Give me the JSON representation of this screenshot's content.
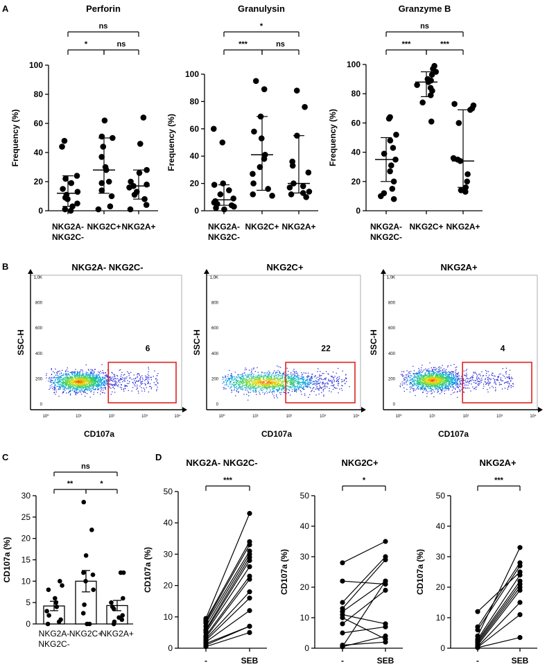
{
  "panels": {
    "A": {
      "label": "A",
      "y_axis_label": "Frequency (%)",
      "ylim": [
        0,
        100
      ],
      "yticks": [
        0,
        20,
        40,
        60,
        80,
        100
      ],
      "category_labels": [
        "NKG2A-\nNKG2C-",
        "NKG2C+",
        "NKG2A+"
      ]
    },
    "B": {
      "label": "B",
      "y_axis_label": "SSC-H",
      "x_axis_label": "CD107a",
      "yticks": [
        "0",
        "200",
        "400",
        "600",
        "800",
        "1,0K"
      ],
      "xticks": [
        "10⁰",
        "10¹",
        "10²",
        "10³",
        "10⁴"
      ],
      "gate_color": "#e02020"
    },
    "C": {
      "label": "C",
      "y_axis_label": "CD107a (%)",
      "ylim": [
        0,
        30
      ],
      "yticks": [
        0,
        5,
        10,
        15,
        20,
        25,
        30
      ],
      "category_labels": [
        "NKG2A-\nNKG2C-",
        "NKG2C+",
        "NKG2A+"
      ]
    },
    "D": {
      "label": "D",
      "y_axis_label": "CD107a (%)",
      "ylim": [
        0,
        50
      ],
      "yticks": [
        0,
        10,
        20,
        30,
        40,
        50
      ],
      "conditions": [
        "-",
        "SEB"
      ]
    }
  },
  "chart_data": [
    {
      "panel": "A",
      "type": "scatter",
      "title": "Perforin",
      "xlabel": "",
      "ylabel": "Frequency (%)",
      "ylim": [
        0,
        100
      ],
      "categories": [
        "NKG2A- NKG2C-",
        "NKG2C+",
        "NKG2A+"
      ],
      "points": [
        [
          48,
          44,
          24,
          22,
          19,
          15,
          13,
          11,
          9,
          8,
          5,
          3,
          1,
          0
        ],
        [
          62,
          51,
          50,
          44,
          37,
          30,
          28,
          20,
          19,
          14,
          10,
          3,
          1
        ],
        [
          64,
          46,
          28,
          26,
          20,
          18,
          17,
          16,
          13,
          11,
          8,
          4,
          1
        ]
      ],
      "medians": [
        12,
        28,
        17
      ],
      "error_low": [
        3,
        12,
        8
      ],
      "error_high": [
        24,
        50,
        28
      ],
      "comparisons": [
        {
          "pair": [
            0,
            1
          ],
          "label": "*"
        },
        {
          "pair": [
            1,
            2
          ],
          "label": "ns"
        },
        {
          "pair": [
            0,
            2
          ],
          "label": "ns"
        }
      ]
    },
    {
      "panel": "A",
      "type": "scatter",
      "title": "Granulysin",
      "xlabel": "",
      "ylabel": "Frequency (%)",
      "ylim": [
        0,
        100
      ],
      "categories": [
        "NKG2A- NKG2C-",
        "NKG2C+",
        "NKG2A+"
      ],
      "points": [
        [
          60,
          50,
          20,
          19,
          15,
          12,
          9,
          7,
          6,
          5,
          4,
          3,
          2,
          1
        ],
        [
          95,
          89,
          69,
          58,
          53,
          41,
          38,
          32,
          27,
          20,
          16,
          12,
          11
        ],
        [
          88,
          76,
          55,
          36,
          33,
          28,
          20,
          18,
          17,
          14,
          13,
          12,
          10
        ]
      ],
      "medians": [
        8,
        41,
        20
      ],
      "error_low": [
        4,
        15,
        13
      ],
      "error_high": [
        19,
        69,
        55
      ],
      "comparisons": [
        {
          "pair": [
            0,
            1
          ],
          "label": "***"
        },
        {
          "pair": [
            1,
            2
          ],
          "label": "ns"
        },
        {
          "pair": [
            0,
            2
          ],
          "label": "*"
        }
      ]
    },
    {
      "panel": "A",
      "type": "scatter",
      "title": "Granzyme B",
      "xlabel": "",
      "ylabel": "Frequency (%)",
      "ylim": [
        0,
        100
      ],
      "categories": [
        "NKG2A- NKG2C-",
        "NKG2C+",
        "NKG2A+"
      ],
      "points": [
        [
          64,
          63,
          52,
          48,
          43,
          39,
          35,
          31,
          27,
          20,
          15,
          10,
          8,
          12
        ],
        [
          99,
          97,
          95,
          93,
          90,
          89,
          88,
          86,
          84,
          82,
          79,
          74,
          61
        ],
        [
          73,
          72,
          70,
          69,
          60,
          36,
          35,
          34,
          25,
          20,
          16,
          14,
          13
        ]
      ],
      "medians": [
        35,
        88,
        34
      ],
      "error_low": [
        20,
        78,
        16
      ],
      "error_high": [
        50,
        95,
        69
      ],
      "comparisons": [
        {
          "pair": [
            0,
            1
          ],
          "label": "***"
        },
        {
          "pair": [
            1,
            2
          ],
          "label": "***"
        },
        {
          "pair": [
            0,
            2
          ],
          "label": "ns"
        }
      ]
    },
    {
      "panel": "B",
      "type": "scatter",
      "title": "NKG2A- NKG2C-",
      "xlabel": "CD107a",
      "ylabel": "SSC-H",
      "gate_percent": "6",
      "population_center_log10": 1.0,
      "population_spread": 0.45,
      "ssc_center": 180
    },
    {
      "panel": "B",
      "type": "scatter",
      "title": "NKG2C+",
      "xlabel": "CD107a",
      "ylabel": "SSC-H",
      "gate_percent": "22",
      "population_center_log10": 1.3,
      "population_spread": 0.75,
      "ssc_center": 175
    },
    {
      "panel": "B",
      "type": "scatter",
      "title": "NKG2A+",
      "xlabel": "CD107a",
      "ylabel": "SSC-H",
      "gate_percent": "4",
      "population_center_log10": 1.0,
      "population_spread": 0.4,
      "ssc_center": 190
    },
    {
      "panel": "C",
      "type": "bar",
      "title": "",
      "xlabel": "",
      "ylabel": "CD107a (%)",
      "ylim": [
        0,
        30
      ],
      "categories": [
        "NKG2A- NKG2C-",
        "NKG2C+",
        "NKG2A+"
      ],
      "values": [
        4.2,
        10,
        4.3
      ],
      "errors": [
        1.1,
        2.5,
        1.2
      ],
      "points": [
        [
          10,
          9,
          8,
          6,
          5,
          4,
          3,
          2,
          1,
          0.5,
          0
        ],
        [
          28.5,
          22,
          16,
          12,
          11.5,
          10,
          8,
          4.5,
          2.5,
          0,
          0
        ],
        [
          12,
          12,
          6,
          5,
          4,
          3.5,
          2,
          1.5,
          1,
          0.5,
          0
        ]
      ],
      "comparisons": [
        {
          "pair": [
            0,
            1
          ],
          "label": "**"
        },
        {
          "pair": [
            1,
            2
          ],
          "label": "*"
        },
        {
          "pair": [
            0,
            2
          ],
          "label": "ns"
        }
      ]
    },
    {
      "panel": "D",
      "type": "line",
      "title": "NKG2A- NKG2C-",
      "xlabel": "",
      "ylabel": "CD107a (%)",
      "ylim": [
        0,
        50
      ],
      "categories": [
        "-",
        "SEB"
      ],
      "pairs": [
        [
          9.5,
          43
        ],
        [
          9,
          34
        ],
        [
          8.5,
          33
        ],
        [
          8,
          31
        ],
        [
          7,
          30
        ],
        [
          6,
          29
        ],
        [
          5.5,
          28
        ],
        [
          5,
          26
        ],
        [
          4,
          23
        ],
        [
          3.5,
          22
        ],
        [
          3,
          18
        ],
        [
          2.5,
          16
        ],
        [
          2,
          12
        ],
        [
          1.5,
          7
        ],
        [
          1,
          7
        ],
        [
          0.5,
          5
        ]
      ],
      "significance": "***"
    },
    {
      "panel": "D",
      "type": "line",
      "title": "NKG2C+",
      "xlabel": "",
      "ylabel": "CD107a (%)",
      "ylim": [
        0,
        50
      ],
      "categories": [
        "-",
        "SEB"
      ],
      "pairs": [
        [
          28,
          35
        ],
        [
          22,
          21
        ],
        [
          15,
          30
        ],
        [
          13,
          29
        ],
        [
          12,
          22
        ],
        [
          11,
          8
        ],
        [
          10,
          3
        ],
        [
          8,
          19
        ],
        [
          5,
          7
        ],
        [
          1,
          2
        ],
        [
          0.5,
          4
        ],
        [
          0.5,
          22
        ]
      ],
      "significance": "*"
    },
    {
      "panel": "D",
      "type": "line",
      "title": "NKG2A+",
      "xlabel": "",
      "ylabel": "CD107a (%)",
      "ylim": [
        0,
        50
      ],
      "categories": [
        "-",
        "SEB"
      ],
      "pairs": [
        [
          12,
          25
        ],
        [
          7,
          28
        ],
        [
          6,
          27
        ],
        [
          4,
          33
        ],
        [
          3,
          24
        ],
        [
          2.5,
          22
        ],
        [
          2,
          21
        ],
        [
          1.5,
          20
        ],
        [
          1,
          19
        ],
        [
          0.5,
          15
        ],
        [
          0.3,
          11
        ],
        [
          0.2,
          3.5
        ]
      ],
      "significance": "***"
    }
  ]
}
